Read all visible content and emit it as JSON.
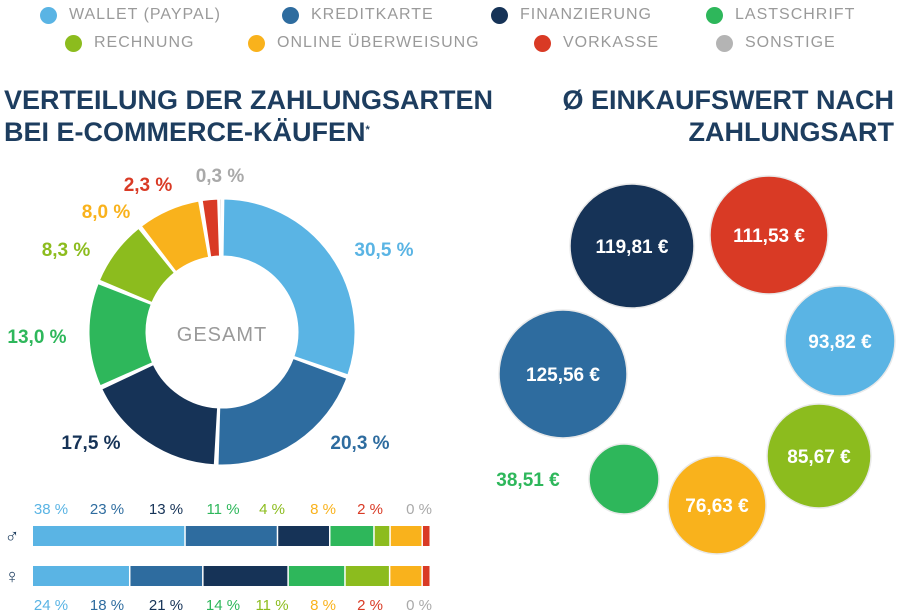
{
  "legend": [
    {
      "label": "WALLET (PAYPAL)",
      "color": "#5ab4e4"
    },
    {
      "label": "KREDITKARTE",
      "color": "#2e6c9f"
    },
    {
      "label": "FINANZIERUNG",
      "color": "#163357"
    },
    {
      "label": "LASTSCHRIFT",
      "color": "#2eb75b"
    },
    {
      "label": "RECHNUNG",
      "color": "#8cbc1e"
    },
    {
      "label": "ONLINE ÜBERWEISUNG",
      "color": "#f9b21c"
    },
    {
      "label": "VORKASSE",
      "color": "#d93a25"
    },
    {
      "label": "SONSTIGE",
      "color": "#b4b4b4"
    }
  ],
  "titles": {
    "left_line1": "VERTEILUNG DER ZAHLUNGSARTEN",
    "left_line2": "BEI E-COMMERCE-KÄUFEN",
    "left_mark": "*",
    "right_line1": "Ø EINKAUFSWERT NACH",
    "right_line2": "ZAHLUNGSART"
  },
  "chart_data": [
    {
      "type": "donut",
      "center_label": "GESAMT",
      "categories": [
        "WALLET (PAYPAL)",
        "KREDITKARTE",
        "FINANZIERUNG",
        "LASTSCHRIFT",
        "RECHNUNG",
        "ONLINE ÜBERWEISUNG",
        "VORKASSE",
        "SONSTIGE"
      ],
      "values": [
        30.5,
        20.3,
        17.5,
        13.0,
        8.3,
        8.0,
        2.3,
        0.3
      ],
      "labels": [
        "30,5 %",
        "20,3 %",
        "17,5 %",
        "13,0 %",
        "8,3 %",
        "8,0 %",
        "2,3 %",
        "0,3 %"
      ]
    },
    {
      "type": "stacked-bar",
      "series": [
        {
          "symbol": "♂",
          "values": [
            38,
            23,
            13,
            11,
            4,
            8,
            2,
            0
          ],
          "labels": [
            "38 %",
            "23 %",
            "13 %",
            "11 %",
            "4 %",
            "8 %",
            "2 %",
            "0 %"
          ]
        },
        {
          "symbol": "♀",
          "values": [
            24,
            18,
            21,
            14,
            11,
            8,
            2,
            0
          ],
          "labels": [
            "24 %",
            "18 %",
            "21 %",
            "14 %",
            "11 %",
            "8 %",
            "2 %",
            "0 %"
          ]
        }
      ]
    },
    {
      "type": "bubble",
      "categories": [
        "FINANZIERUNG",
        "VORKASSE",
        "WALLET (PAYPAL)",
        "KREDITKARTE",
        "RECHNUNG",
        "ONLINE ÜBERWEISUNG",
        "LASTSCHRIFT"
      ],
      "values": [
        119.81,
        111.53,
        93.82,
        125.56,
        85.67,
        76.63,
        38.51
      ],
      "labels": [
        "119,81 €",
        "111,53 €",
        "93,82 €",
        "125,56 €",
        "85,67 €",
        "76,63 €",
        "38,51 €"
      ]
    }
  ]
}
